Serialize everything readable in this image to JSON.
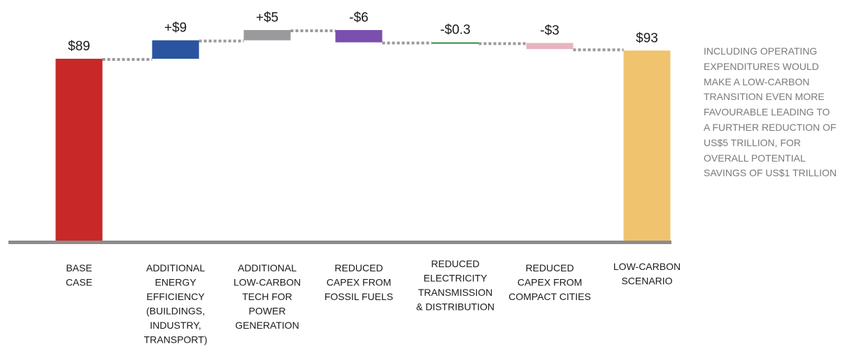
{
  "chart_data": {
    "type": "bar",
    "subtype": "waterfall",
    "categories": [
      [
        "BASE",
        "CASE"
      ],
      [
        "ADDITIONAL",
        "ENERGY",
        "EFFICIENCY",
        "(BUILDINGS,",
        "INDUSTRY,",
        "TRANSPORT)"
      ],
      [
        "ADDITIONAL",
        "LOW-CARBON",
        "TECH FOR",
        "POWER",
        "GENERATION"
      ],
      [
        "REDUCED",
        "CAPEX FROM",
        "FOSSIL FUELS"
      ],
      [
        "REDUCED",
        "ELECTRICITY",
        "TRANSMISSION",
        "& DISTRIBUTION"
      ],
      [
        "REDUCED",
        "CAPEX FROM",
        "COMPACT CITIES"
      ],
      [
        "LOW-CARBON",
        "SCENARIO"
      ]
    ],
    "values": [
      89,
      9,
      5,
      -6,
      -0.3,
      -3,
      93
    ],
    "kinds": [
      "total",
      "delta",
      "delta",
      "delta",
      "delta",
      "delta",
      "total"
    ],
    "value_labels": [
      "$89",
      "+$9",
      "+$5",
      "-$6",
      "-$0.3",
      "-$3",
      "$93"
    ],
    "colors": [
      "#c82828",
      "#2a54a0",
      "#9a9a9c",
      "#7b4fae",
      "#2e8b3a",
      "#e8b4c0",
      "#f0c46e"
    ],
    "connector_color": "#9a9a9a",
    "baseline_color": "#8c8c8c",
    "ylim": [
      0,
      100
    ],
    "grid": false,
    "legend": "none",
    "title": "",
    "xlabel": "",
    "ylabel": ""
  },
  "annotation": "INCLUDING OPERATING\nEXPENDITURES WOULD\nMAKE A LOW-CARBON\nTRANSITION EVEN MORE\nFAVOURABLE LEADING TO\nA FURTHER REDUCTION OF\nUS$5 TRILLION, FOR\nOVERALL POTENTIAL\nSAVINGS OF US$1 TRILLION"
}
